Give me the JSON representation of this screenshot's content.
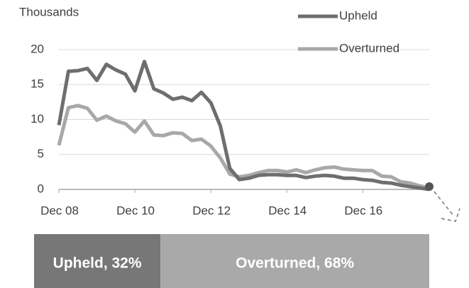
{
  "chart_data": [
    {
      "type": "line",
      "y_label": "Thousands",
      "categories": [
        "Dec 08",
        null,
        null,
        null,
        null,
        null,
        null,
        null,
        "Dec 10",
        null,
        null,
        null,
        null,
        null,
        null,
        null,
        "Dec 12",
        null,
        null,
        null,
        null,
        null,
        null,
        null,
        "Dec 14",
        null,
        null,
        null,
        null,
        null,
        null,
        null,
        "Dec 16",
        null,
        null,
        null,
        null,
        null,
        null,
        null
      ],
      "series": [
        {
          "name": "Upheld",
          "color": "#6e6e6e",
          "values": [
            9.2,
            16.9,
            17.0,
            17.3,
            15.6,
            17.9,
            17.1,
            16.5,
            14.1,
            18.3,
            14.4,
            13.8,
            12.9,
            13.2,
            12.7,
            13.9,
            12.4,
            9.1,
            3.0,
            1.4,
            1.6,
            2.0,
            2.1,
            2.1,
            2.0,
            2.0,
            1.7,
            1.9,
            2.0,
            1.9,
            1.6,
            1.6,
            1.4,
            1.3,
            1.0,
            0.9,
            0.6,
            0.4,
            0.2,
            0.0
          ]
        },
        {
          "name": "Overturned",
          "color": "#a8a8a8",
          "values": [
            6.3,
            11.7,
            12.0,
            11.6,
            9.9,
            10.5,
            9.8,
            9.4,
            8.2,
            9.8,
            7.8,
            7.7,
            8.1,
            8.0,
            7.0,
            7.2,
            6.2,
            4.5,
            2.2,
            1.8,
            2.0,
            2.4,
            2.7,
            2.7,
            2.5,
            2.8,
            2.4,
            2.8,
            3.1,
            3.2,
            2.9,
            2.8,
            2.7,
            2.7,
            1.9,
            1.8,
            1.1,
            0.9,
            0.5,
            0.2
          ]
        }
      ],
      "ylim": [
        0,
        20
      ],
      "yticks": [
        0,
        5,
        10,
        15,
        20
      ],
      "grid": true,
      "legend": "top-right"
    },
    {
      "type": "stacked_bar",
      "values": [
        32,
        68
      ],
      "value_labels": [
        "Upheld, 32%",
        "Overturned, 68%"
      ],
      "colors": [
        "#777777",
        "#a9a9a9"
      ],
      "xlim": [
        0,
        100
      ]
    }
  ]
}
